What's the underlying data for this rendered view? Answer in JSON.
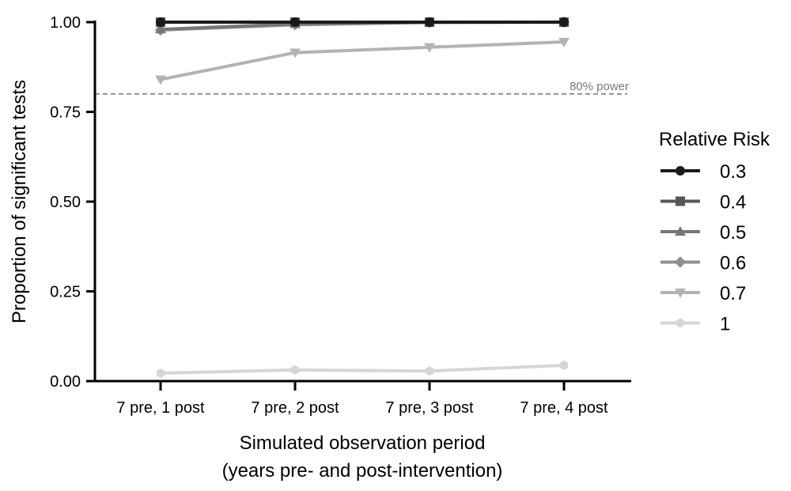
{
  "chart_data": {
    "type": "line",
    "xlabel_lines": [
      "Simulated observation period",
      "(years pre- and post-intervention)"
    ],
    "ylabel": "Proportion of significant tests",
    "categories": [
      "7 pre, 1 post",
      "7 pre, 2 post",
      "7 pre, 3 post",
      "7 pre, 4 post"
    ],
    "ylim": [
      0,
      1
    ],
    "yticks": [
      "0.00",
      "0.25",
      "0.50",
      "0.75",
      "1.00"
    ],
    "reference_line": {
      "y": 0.8,
      "label": "80% power",
      "style": "dashed",
      "color": "#7f7f7f"
    },
    "legend": {
      "title": "Relative Risk",
      "position": "right"
    },
    "grid": false,
    "series": [
      {
        "name": "0.3",
        "marker": "circle",
        "color": "#1a1a1a",
        "values": [
          1.0,
          1.0,
          1.0,
          1.0
        ]
      },
      {
        "name": "0.4",
        "marker": "square",
        "color": "#575757",
        "values": [
          1.0,
          1.0,
          1.0,
          1.0
        ]
      },
      {
        "name": "0.5",
        "marker": "triangle-up",
        "color": "#777777",
        "values": [
          0.98,
          0.995,
          1.0,
          1.0
        ]
      },
      {
        "name": "0.6",
        "marker": "diamond",
        "color": "#8f8f8f",
        "values": [
          0.978,
          0.993,
          0.999,
          1.0
        ]
      },
      {
        "name": "0.7",
        "marker": "triangle-down",
        "color": "#b3b3b3",
        "values": [
          0.84,
          0.915,
          0.93,
          0.945
        ]
      },
      {
        "name": "1",
        "marker": "hexagon",
        "color": "#d6d6d6",
        "values": [
          0.022,
          0.031,
          0.028,
          0.044
        ]
      }
    ]
  }
}
